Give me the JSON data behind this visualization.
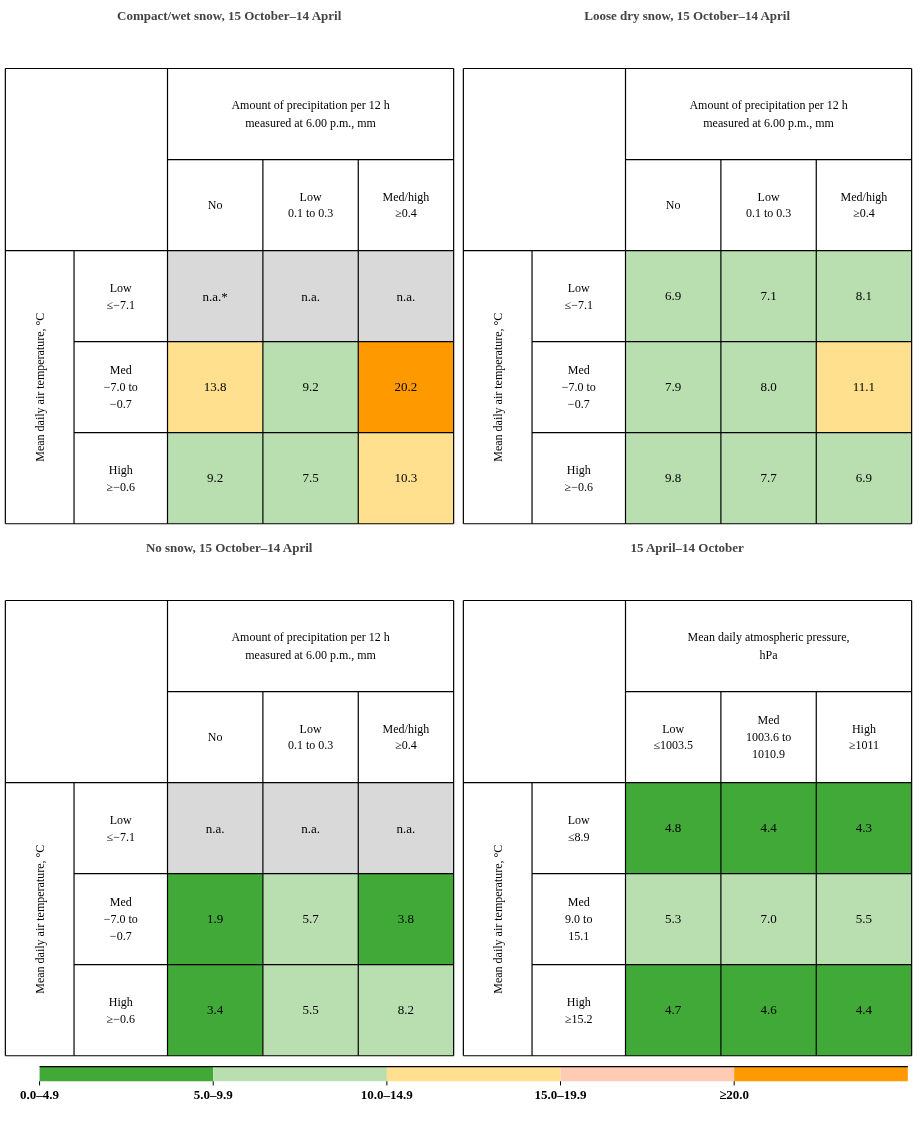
{
  "chart_data": [
    {
      "type": "heatmap",
      "title": "Compact/wet snow, 15 October–14 April",
      "xlabel": "Amount of precipitation per 12 h\nmeasured at 6.00 p.m., mm",
      "ylabel": "Mean daily air temperature, °C",
      "categories": [
        "No",
        "Low\n0.1 to 0.3",
        "Med/high\n≥0.4"
      ],
      "y_categories": [
        "Low\n≤−7.1",
        "Med\n−7.0 to\n−0.7",
        "High\n≥−0.6"
      ],
      "cells": [
        [
          null,
          null,
          null
        ],
        [
          13.8,
          9.2,
          20.2
        ],
        [
          9.2,
          7.5,
          10.3
        ]
      ],
      "cell_labels": [
        [
          "n.a.*",
          "n.a.",
          "n.a."
        ],
        [
          "13.8",
          "9.2",
          "20.2"
        ],
        [
          "9.2",
          "7.5",
          "10.3"
        ]
      ]
    },
    {
      "type": "heatmap",
      "title": "Loose dry snow, 15 October–14 April",
      "xlabel": "Amount of precipitation per 12 h\nmeasured at 6.00 p.m., mm",
      "ylabel": "Mean daily air temperature, °C",
      "categories": [
        "No",
        "Low\n0.1 to 0.3",
        "Med/high\n≥0.4"
      ],
      "y_categories": [
        "Low\n≤−7.1",
        "Med\n−7.0 to\n−0.7",
        "High\n≥−0.6"
      ],
      "cells": [
        [
          6.9,
          7.1,
          8.1
        ],
        [
          7.9,
          8.0,
          11.1
        ],
        [
          9.8,
          7.7,
          6.9
        ]
      ],
      "cell_labels": [
        [
          "6.9",
          "7.1",
          "8.1"
        ],
        [
          "7.9",
          "8.0",
          "11.1"
        ],
        [
          "9.8",
          "7.7",
          "6.9"
        ]
      ]
    },
    {
      "type": "heatmap",
      "title": "No snow, 15 October–14 April",
      "xlabel": "Amount of precipitation per 12 h\nmeasured at 6.00 p.m., mm",
      "ylabel": "Mean daily air temperature, °C",
      "categories": [
        "No",
        "Low\n0.1 to 0.3",
        "Med/high\n≥0.4"
      ],
      "y_categories": [
        "Low\n≤−7.1",
        "Med\n−7.0 to\n−0.7",
        "High\n≥−0.6"
      ],
      "cells": [
        [
          null,
          null,
          null
        ],
        [
          1.9,
          5.7,
          3.8
        ],
        [
          3.4,
          5.5,
          8.2
        ]
      ],
      "cell_labels": [
        [
          "n.a.",
          "n.a.",
          "n.a."
        ],
        [
          "1.9",
          "5.7",
          "3.8"
        ],
        [
          "3.4",
          "5.5",
          "8.2"
        ]
      ]
    },
    {
      "type": "heatmap",
      "title": "15 April–14 October",
      "xlabel": "Mean daily atmospheric pressure,\nhPa",
      "ylabel": "Mean daily air temperature, °C",
      "categories": [
        "Low\n≤1003.5",
        "Med\n1003.6 to\n1010.9",
        "High\n≥1011"
      ],
      "y_categories": [
        "Low\n≤8.9",
        "Med\n9.0 to\n15.1",
        "High\n≥15.2"
      ],
      "cells": [
        [
          4.8,
          4.4,
          4.3
        ],
        [
          5.3,
          7.0,
          5.5
        ],
        [
          4.7,
          4.6,
          4.4
        ]
      ],
      "cell_labels": [
        [
          "4.8",
          "4.4",
          "4.3"
        ],
        [
          "5.3",
          "7.0",
          "5.5"
        ],
        [
          "4.7",
          "4.6",
          "4.4"
        ]
      ],
      "clim": [
        0,
        25
      ],
      "cticks": [
        {
          "value": 0,
          "label": "0.0–4.9"
        },
        {
          "value": 5,
          "label": "5.0–9.9"
        },
        {
          "value": 10,
          "label": "10.0–14.9"
        },
        {
          "value": 15,
          "label": "15.0–19.9"
        },
        {
          "value": 20,
          "label": "≥20.0"
        }
      ],
      "colors": [
        "#41a938",
        "#b9dfb1",
        "#ffe08f",
        "#ffcbb2",
        "#ff9900"
      ]
    }
  ]
}
